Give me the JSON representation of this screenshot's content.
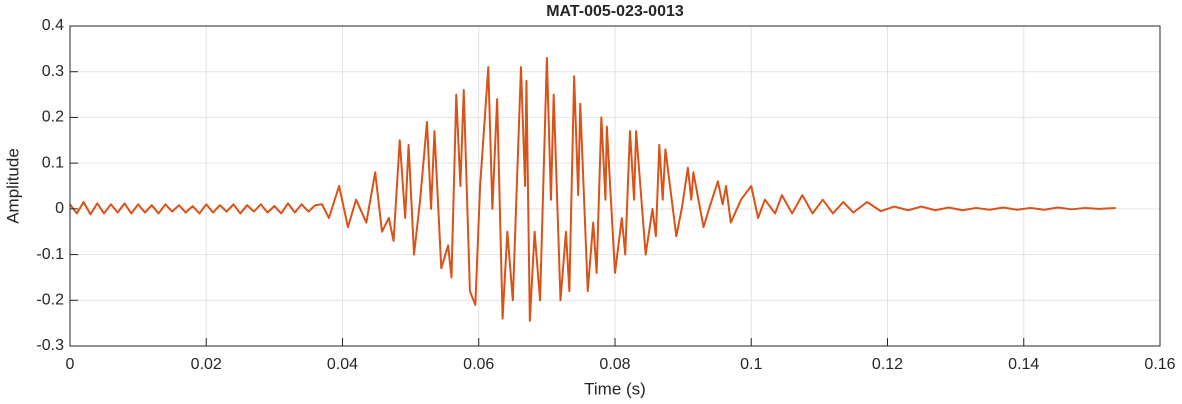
{
  "chart_data": {
    "type": "line",
    "title": "MAT-005-023-0013",
    "x_label": "Time (s)",
    "y_label": "Amplitude",
    "x": [
      0,
      0.001,
      0.002,
      0.003,
      0.004,
      0.005,
      0.006,
      0.007,
      0.008,
      0.009,
      0.01,
      0.011,
      0.012,
      0.013,
      0.014,
      0.015,
      0.016,
      0.017,
      0.018,
      0.019,
      0.02,
      0.021,
      0.022,
      0.023,
      0.024,
      0.025,
      0.026,
      0.027,
      0.028,
      0.029,
      0.03,
      0.031,
      0.032,
      0.033,
      0.034,
      0.035,
      0.036,
      0.037,
      0.038,
      0.0395,
      0.0408,
      0.042,
      0.0435,
      0.0448,
      0.0458,
      0.0468,
      0.0475,
      0.0484,
      0.0492,
      0.0497,
      0.0505,
      0.0514,
      0.0524,
      0.053,
      0.0535,
      0.0545,
      0.0555,
      0.056,
      0.0567,
      0.0573,
      0.0578,
      0.0587,
      0.0595,
      0.0602,
      0.0614,
      0.062,
      0.0627,
      0.0635,
      0.0642,
      0.065,
      0.0662,
      0.0668,
      0.067,
      0.0675,
      0.0682,
      0.069,
      0.07,
      0.0706,
      0.071,
      0.072,
      0.0728,
      0.0733,
      0.074,
      0.0746,
      0.0749,
      0.076,
      0.0768,
      0.0773,
      0.078,
      0.0786,
      0.0788,
      0.08,
      0.081,
      0.0815,
      0.0822,
      0.0828,
      0.0831,
      0.0845,
      0.0855,
      0.086,
      0.0865,
      0.087,
      0.0874,
      0.089,
      0.0898,
      0.0907,
      0.0912,
      0.0915,
      0.093,
      0.0938,
      0.0951,
      0.0958,
      0.0963,
      0.097,
      0.0985,
      0.1,
      0.101,
      0.102,
      0.1035,
      0.1045,
      0.106,
      0.1075,
      0.109,
      0.1105,
      0.112,
      0.1135,
      0.115,
      0.117,
      0.119,
      0.121,
      0.123,
      0.125,
      0.127,
      0.129,
      0.131,
      0.133,
      0.135,
      0.137,
      0.139,
      0.141,
      0.143,
      0.145,
      0.147,
      0.149,
      0.151,
      0.1535
    ],
    "series": [
      {
        "name": "Amplitude",
        "color": "#d95319",
        "values": [
          0.01,
          -0.01,
          0.015,
          -0.012,
          0.012,
          -0.01,
          0.01,
          -0.008,
          0.012,
          -0.01,
          0.01,
          -0.008,
          0.008,
          -0.01,
          0.01,
          -0.006,
          0.008,
          -0.008,
          0.006,
          -0.01,
          0.01,
          -0.008,
          0.008,
          -0.006,
          0.01,
          -0.01,
          0.008,
          -0.006,
          0.01,
          -0.008,
          0.006,
          -0.01,
          0.012,
          -0.008,
          0.01,
          -0.006,
          0.008,
          0.01,
          -0.02,
          0.05,
          -0.04,
          0.02,
          -0.03,
          0.08,
          -0.05,
          -0.02,
          -0.07,
          0.15,
          -0.02,
          0.14,
          -0.1,
          0.02,
          0.19,
          0,
          0.17,
          -0.13,
          -0.08,
          -0.15,
          0.25,
          0.05,
          0.26,
          -0.18,
          -0.21,
          0.05,
          0.31,
          0,
          0.24,
          -0.24,
          -0.05,
          -0.2,
          0.31,
          0.05,
          0.28,
          -0.245,
          -0.05,
          -0.2,
          0.33,
          0.02,
          0.25,
          -0.2,
          -0.05,
          -0.18,
          0.29,
          0.03,
          0.23,
          -0.18,
          -0.03,
          -0.14,
          0.2,
          0.02,
          0.18,
          -0.14,
          -0.02,
          -0.1,
          0.17,
          0.02,
          0.17,
          -0.1,
          0,
          -0.06,
          0.14,
          0.02,
          0.13,
          -0.06,
          0,
          0.09,
          0.02,
          0.08,
          -0.04,
          0,
          0.06,
          0.01,
          0.05,
          -0.03,
          0.02,
          0.05,
          -0.02,
          0.02,
          -0.01,
          0.03,
          -0.01,
          0.03,
          -0.01,
          0.02,
          -0.01,
          0.015,
          -0.008,
          0.015,
          -0.005,
          0.005,
          -0.003,
          0.005,
          -0.003,
          0.003,
          -0.003,
          0.002,
          -0.002,
          0.003,
          -0.002,
          0.002,
          -0.002,
          0.003,
          -0.001,
          0.002,
          0,
          0.002
        ]
      }
    ],
    "xlim": [
      0,
      0.16
    ],
    "xticks": [
      0,
      0.02,
      0.04,
      0.06,
      0.08,
      0.1,
      0.12,
      0.14,
      0.16
    ],
    "ylim": [
      -0.3,
      0.4
    ],
    "yticks": [
      -0.3,
      -0.2,
      -0.1,
      0,
      0.1,
      0.2,
      0.3,
      0.4
    ],
    "grid": true
  }
}
